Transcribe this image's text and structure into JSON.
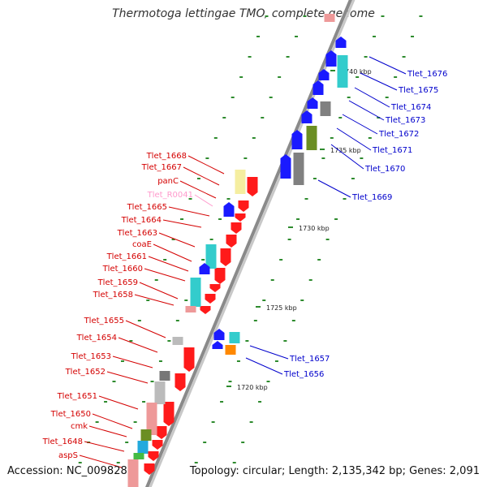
{
  "header": {
    "title": "Thermotoga lettingae TMO, complete genome"
  },
  "footer": {
    "accession": "Accession: NC_009828",
    "topology": "Topology: circular; Length: 2,135,342 bp; Genes: 2,091"
  },
  "colors": {
    "plus_strand_label": "#d40000",
    "minus_strand_label": "#0000cc",
    "rna_label": "#ff99cc",
    "backbone": "#888888",
    "red_gene": "#ff1a1a",
    "blue_gene": "#1a1aff",
    "cyan_gene": "#33cccc",
    "gray_gene": "#808080",
    "olive_gene": "#6b8e23",
    "yellow_gene": "#f5eea0",
    "tick": "#2e8b2e"
  },
  "kbp_ticks": [
    "1720 kbp",
    "1725 kbp",
    "1730 kbp",
    "1735 kbp",
    "1740 kbp"
  ],
  "left_labels": [
    {
      "text": "Tlet_1668",
      "kind": "gene"
    },
    {
      "text": "Tlet_1667",
      "kind": "gene"
    },
    {
      "text": "panC",
      "kind": "gene"
    },
    {
      "text": "Tlet_R0041",
      "kind": "rna"
    },
    {
      "text": "Tlet_1665",
      "kind": "gene"
    },
    {
      "text": "Tlet_1664",
      "kind": "gene"
    },
    {
      "text": "Tlet_1663",
      "kind": "gene"
    },
    {
      "text": "coaE",
      "kind": "gene"
    },
    {
      "text": "Tlet_1661",
      "kind": "gene"
    },
    {
      "text": "Tlet_1660",
      "kind": "gene"
    },
    {
      "text": "Tlet_1659",
      "kind": "gene"
    },
    {
      "text": "Tlet_1658",
      "kind": "gene"
    },
    {
      "text": "Tlet_1655",
      "kind": "gene"
    },
    {
      "text": "Tlet_1654",
      "kind": "gene"
    },
    {
      "text": "Tlet_1653",
      "kind": "gene"
    },
    {
      "text": "Tlet_1652",
      "kind": "gene"
    },
    {
      "text": "Tlet_1651",
      "kind": "gene"
    },
    {
      "text": "Tlet_1650",
      "kind": "gene"
    },
    {
      "text": "cmk",
      "kind": "gene"
    },
    {
      "text": "Tlet_1648",
      "kind": "gene"
    },
    {
      "text": "aspS",
      "kind": "gene"
    }
  ],
  "right_labels": [
    {
      "text": "Tlet_1676"
    },
    {
      "text": "Tlet_1675"
    },
    {
      "text": "Tlet_1674"
    },
    {
      "text": "Tlet_1673"
    },
    {
      "text": "Tlet_1672"
    },
    {
      "text": "Tlet_1671"
    },
    {
      "text": "Tlet_1670"
    },
    {
      "text": "Tlet_1669"
    },
    {
      "text": "Tlet_1657"
    },
    {
      "text": "Tlet_1656"
    }
  ]
}
